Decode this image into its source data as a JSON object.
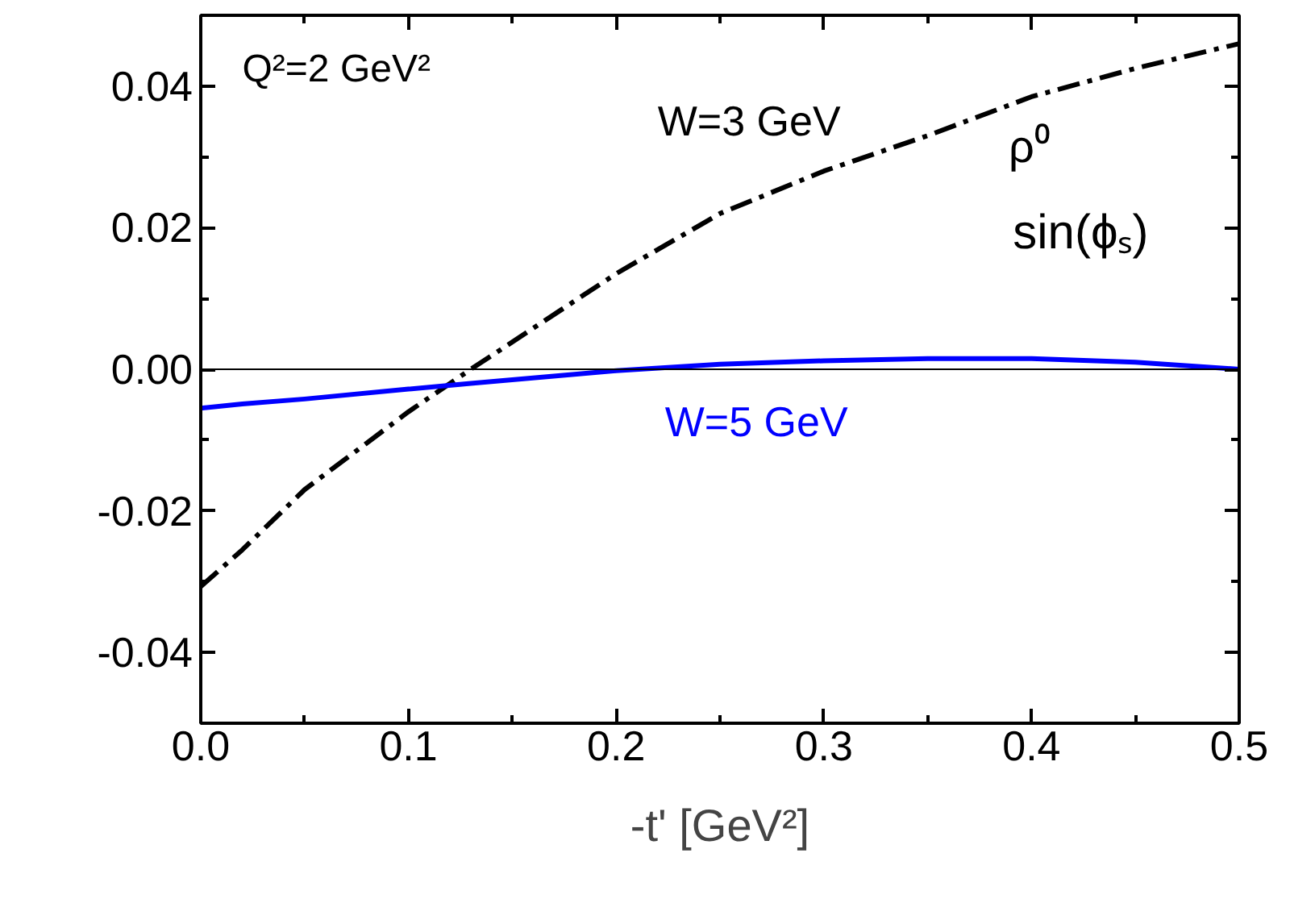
{
  "chart_data": {
    "type": "line",
    "xlabel": "-t' [GeV²]",
    "x": [
      0.0,
      0.02,
      0.05,
      0.1,
      0.13,
      0.2,
      0.25,
      0.3,
      0.35,
      0.4,
      0.45,
      0.5
    ],
    "series": [
      {
        "name": "W=3 GeV",
        "color": "#000000",
        "line_style": "dashdot",
        "values": [
          -0.0307,
          -0.0255,
          -0.017,
          -0.006,
          0.0,
          0.0135,
          0.022,
          0.028,
          0.033,
          0.0385,
          0.0425,
          0.046
        ]
      },
      {
        "name": "W=5 GeV",
        "color": "#0000ff",
        "line_style": "solid",
        "values": [
          -0.0055,
          -0.0049,
          -0.0042,
          -0.0028,
          -0.002,
          -0.0002,
          0.0007,
          0.0012,
          0.0015,
          0.0015,
          0.001,
          0.0
        ]
      }
    ],
    "xlim": [
      0.0,
      0.5
    ],
    "xticks": [
      {
        "value": 0.0,
        "label": "0.0"
      },
      0.1,
      0.2,
      0.3,
      0.4,
      0.5
    ],
    "ylim": [
      -0.05,
      0.05
    ],
    "yticks": [
      {
        "value": -0.04,
        "label": "-0.04"
      },
      {
        "value": -0.02,
        "label": "-0.02"
      },
      {
        "value": 0.0,
        "label": "0.00"
      },
      0.02,
      0.04
    ],
    "ref_lines": [
      {
        "axis": "y",
        "value": 0.0,
        "color": "#000000"
      }
    ],
    "annotations": [
      "Q²=2 GeV²",
      "ρ⁰",
      "sin(ϕₛ)"
    ]
  }
}
